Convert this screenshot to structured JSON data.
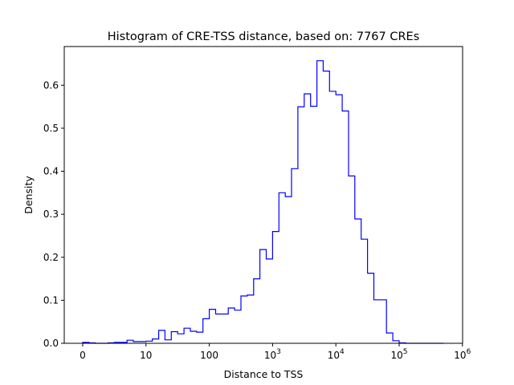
{
  "chart_data": {
    "type": "histogram",
    "title": "Histogram of CRE-TSS distance, based on: 7767 CREs",
    "xlabel": "Distance to TSS",
    "ylabel": "Density",
    "x_scale": "log10 (0 mapped to first tick)",
    "x_ticks": [
      {
        "label": "0",
        "base": "0",
        "exp": ""
      },
      {
        "label": "10",
        "base": "10",
        "exp": ""
      },
      {
        "label": "100",
        "base": "100",
        "exp": ""
      },
      {
        "label": "10^3",
        "base": "10",
        "exp": "3"
      },
      {
        "label": "10^4",
        "base": "10",
        "exp": "4"
      },
      {
        "label": "10^5",
        "base": "10",
        "exp": "5"
      },
      {
        "label": "10^6",
        "base": "10",
        "exp": "6"
      }
    ],
    "y_ticks": [
      "0.0",
      "0.1",
      "0.2",
      "0.3",
      "0.4",
      "0.5",
      "0.6"
    ],
    "ylim": [
      0,
      0.69
    ],
    "grid": false,
    "line_color": "#0000ff",
    "bin_edges_log10": [
      0,
      0.1,
      0.2,
      0.3,
      0.4,
      0.5,
      0.6,
      0.7,
      0.8,
      0.9,
      1.0,
      1.1,
      1.2,
      1.3,
      1.4,
      1.5,
      1.6,
      1.7,
      1.8,
      1.9,
      2.0,
      2.1,
      2.2,
      2.3,
      2.4,
      2.5,
      2.6,
      2.7,
      2.8,
      2.9,
      3.0,
      3.1,
      3.2,
      3.3,
      3.4,
      3.5,
      3.6,
      3.7,
      3.8,
      3.9,
      4.0,
      4.1,
      4.2,
      4.3,
      4.4,
      4.5,
      4.6,
      4.7,
      4.8,
      4.9,
      5.0,
      5.1,
      5.2,
      5.3,
      5.4,
      5.5,
      5.6,
      5.7
    ],
    "densities": [
      0.002,
      0.001,
      0.0,
      0.0,
      0.001,
      0.002,
      0.002,
      0.007,
      0.004,
      0.004,
      0.005,
      0.01,
      0.03,
      0.008,
      0.027,
      0.022,
      0.035,
      0.028,
      0.026,
      0.057,
      0.079,
      0.068,
      0.068,
      0.082,
      0.077,
      0.11,
      0.112,
      0.15,
      0.218,
      0.196,
      0.26,
      0.35,
      0.341,
      0.406,
      0.55,
      0.58,
      0.551,
      0.657,
      0.633,
      0.586,
      0.578,
      0.54,
      0.389,
      0.289,
      0.242,
      0.163,
      0.101,
      0.101,
      0.024,
      0.006,
      0.001,
      0.0,
      0.0,
      0.0,
      0.0,
      0.0,
      0.0
    ]
  }
}
